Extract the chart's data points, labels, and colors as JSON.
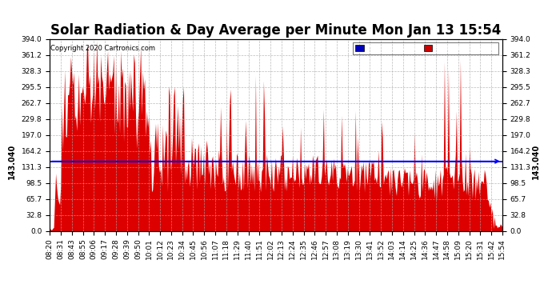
{
  "title": "Solar Radiation & Day Average per Minute Mon Jan 13 15:54",
  "copyright": "Copyright 2020 Cartronics.com",
  "median_value": 143.04,
  "ymax": 394.0,
  "ymin": 0.0,
  "yticks": [
    0.0,
    32.8,
    65.7,
    98.5,
    131.3,
    164.2,
    197.0,
    229.8,
    262.7,
    295.5,
    328.3,
    361.2,
    394.0
  ],
  "xtick_labels": [
    "08:20",
    "08:31",
    "08:43",
    "08:55",
    "09:06",
    "09:17",
    "09:28",
    "09:39",
    "09:50",
    "10:01",
    "10:12",
    "10:23",
    "10:34",
    "10:45",
    "10:56",
    "11:07",
    "11:18",
    "11:29",
    "11:40",
    "11:51",
    "12:02",
    "12:13",
    "12:24",
    "12:35",
    "12:46",
    "12:57",
    "13:08",
    "13:19",
    "13:30",
    "13:41",
    "13:52",
    "14:03",
    "14:14",
    "14:25",
    "14:36",
    "14:47",
    "14:58",
    "15:09",
    "15:20",
    "15:31",
    "15:42",
    "15:54"
  ],
  "legend_median_color": "#0000bb",
  "legend_radiation_color": "#cc0000",
  "bar_color": "#dd0000",
  "median_line_color": "#0000ff",
  "background_color": "#ffffff",
  "grid_color": "#aaaaaa",
  "title_fontsize": 12,
  "tick_fontsize": 6.5,
  "figsize": [
    6.9,
    3.75
  ],
  "dpi": 100
}
